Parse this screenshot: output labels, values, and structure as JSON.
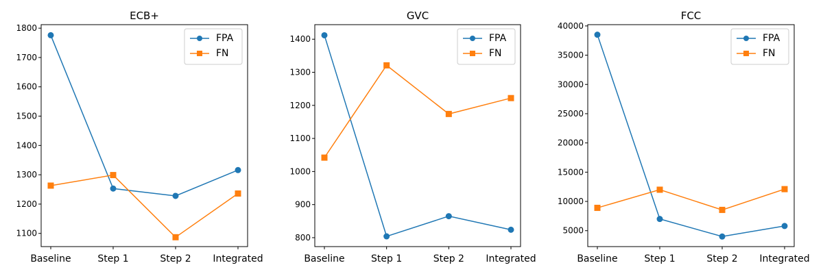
{
  "chart_data": [
    {
      "type": "line",
      "title": "ECB+",
      "categories": [
        "Baseline",
        "Step 1",
        "Step 2",
        "Integrated"
      ],
      "ylim": [
        1055,
        1812
      ],
      "yticks": [
        1100,
        1200,
        1300,
        1400,
        1500,
        1600,
        1700,
        1800
      ],
      "legend_position": "top-right",
      "series": [
        {
          "name": "FPA",
          "color": "#1f77b4",
          "marker": "circle",
          "values": [
            1776,
            1253,
            1228,
            1316
          ]
        },
        {
          "name": "FN",
          "color": "#ff7f0e",
          "marker": "square",
          "values": [
            1263,
            1299,
            1087,
            1236
          ]
        }
      ]
    },
    {
      "type": "line",
      "title": "GVC",
      "categories": [
        "Baseline",
        "Step 1",
        "Step 2",
        "Integrated"
      ],
      "ylim": [
        773,
        1444
      ],
      "yticks": [
        800,
        900,
        1000,
        1100,
        1200,
        1300,
        1400
      ],
      "legend_position": "top-right",
      "series": [
        {
          "name": "FPA",
          "color": "#1f77b4",
          "marker": "circle",
          "values": [
            1412,
            804,
            865,
            824
          ]
        },
        {
          "name": "FN",
          "color": "#ff7f0e",
          "marker": "square",
          "values": [
            1042,
            1321,
            1174,
            1222
          ]
        }
      ]
    },
    {
      "type": "line",
      "title": "FCC",
      "categories": [
        "Baseline",
        "Step 1",
        "Step 2",
        "Integrated"
      ],
      "ylim": [
        2275,
        40219
      ],
      "yticks": [
        5000,
        10000,
        15000,
        20000,
        25000,
        30000,
        35000,
        40000
      ],
      "legend_position": "top-right",
      "series": [
        {
          "name": "FPA",
          "color": "#1f77b4",
          "marker": "circle",
          "values": [
            38500,
            7000,
            4000,
            5800
          ]
        },
        {
          "name": "FN",
          "color": "#ff7f0e",
          "marker": "square",
          "values": [
            8900,
            12000,
            8550,
            12100
          ]
        }
      ]
    }
  ]
}
